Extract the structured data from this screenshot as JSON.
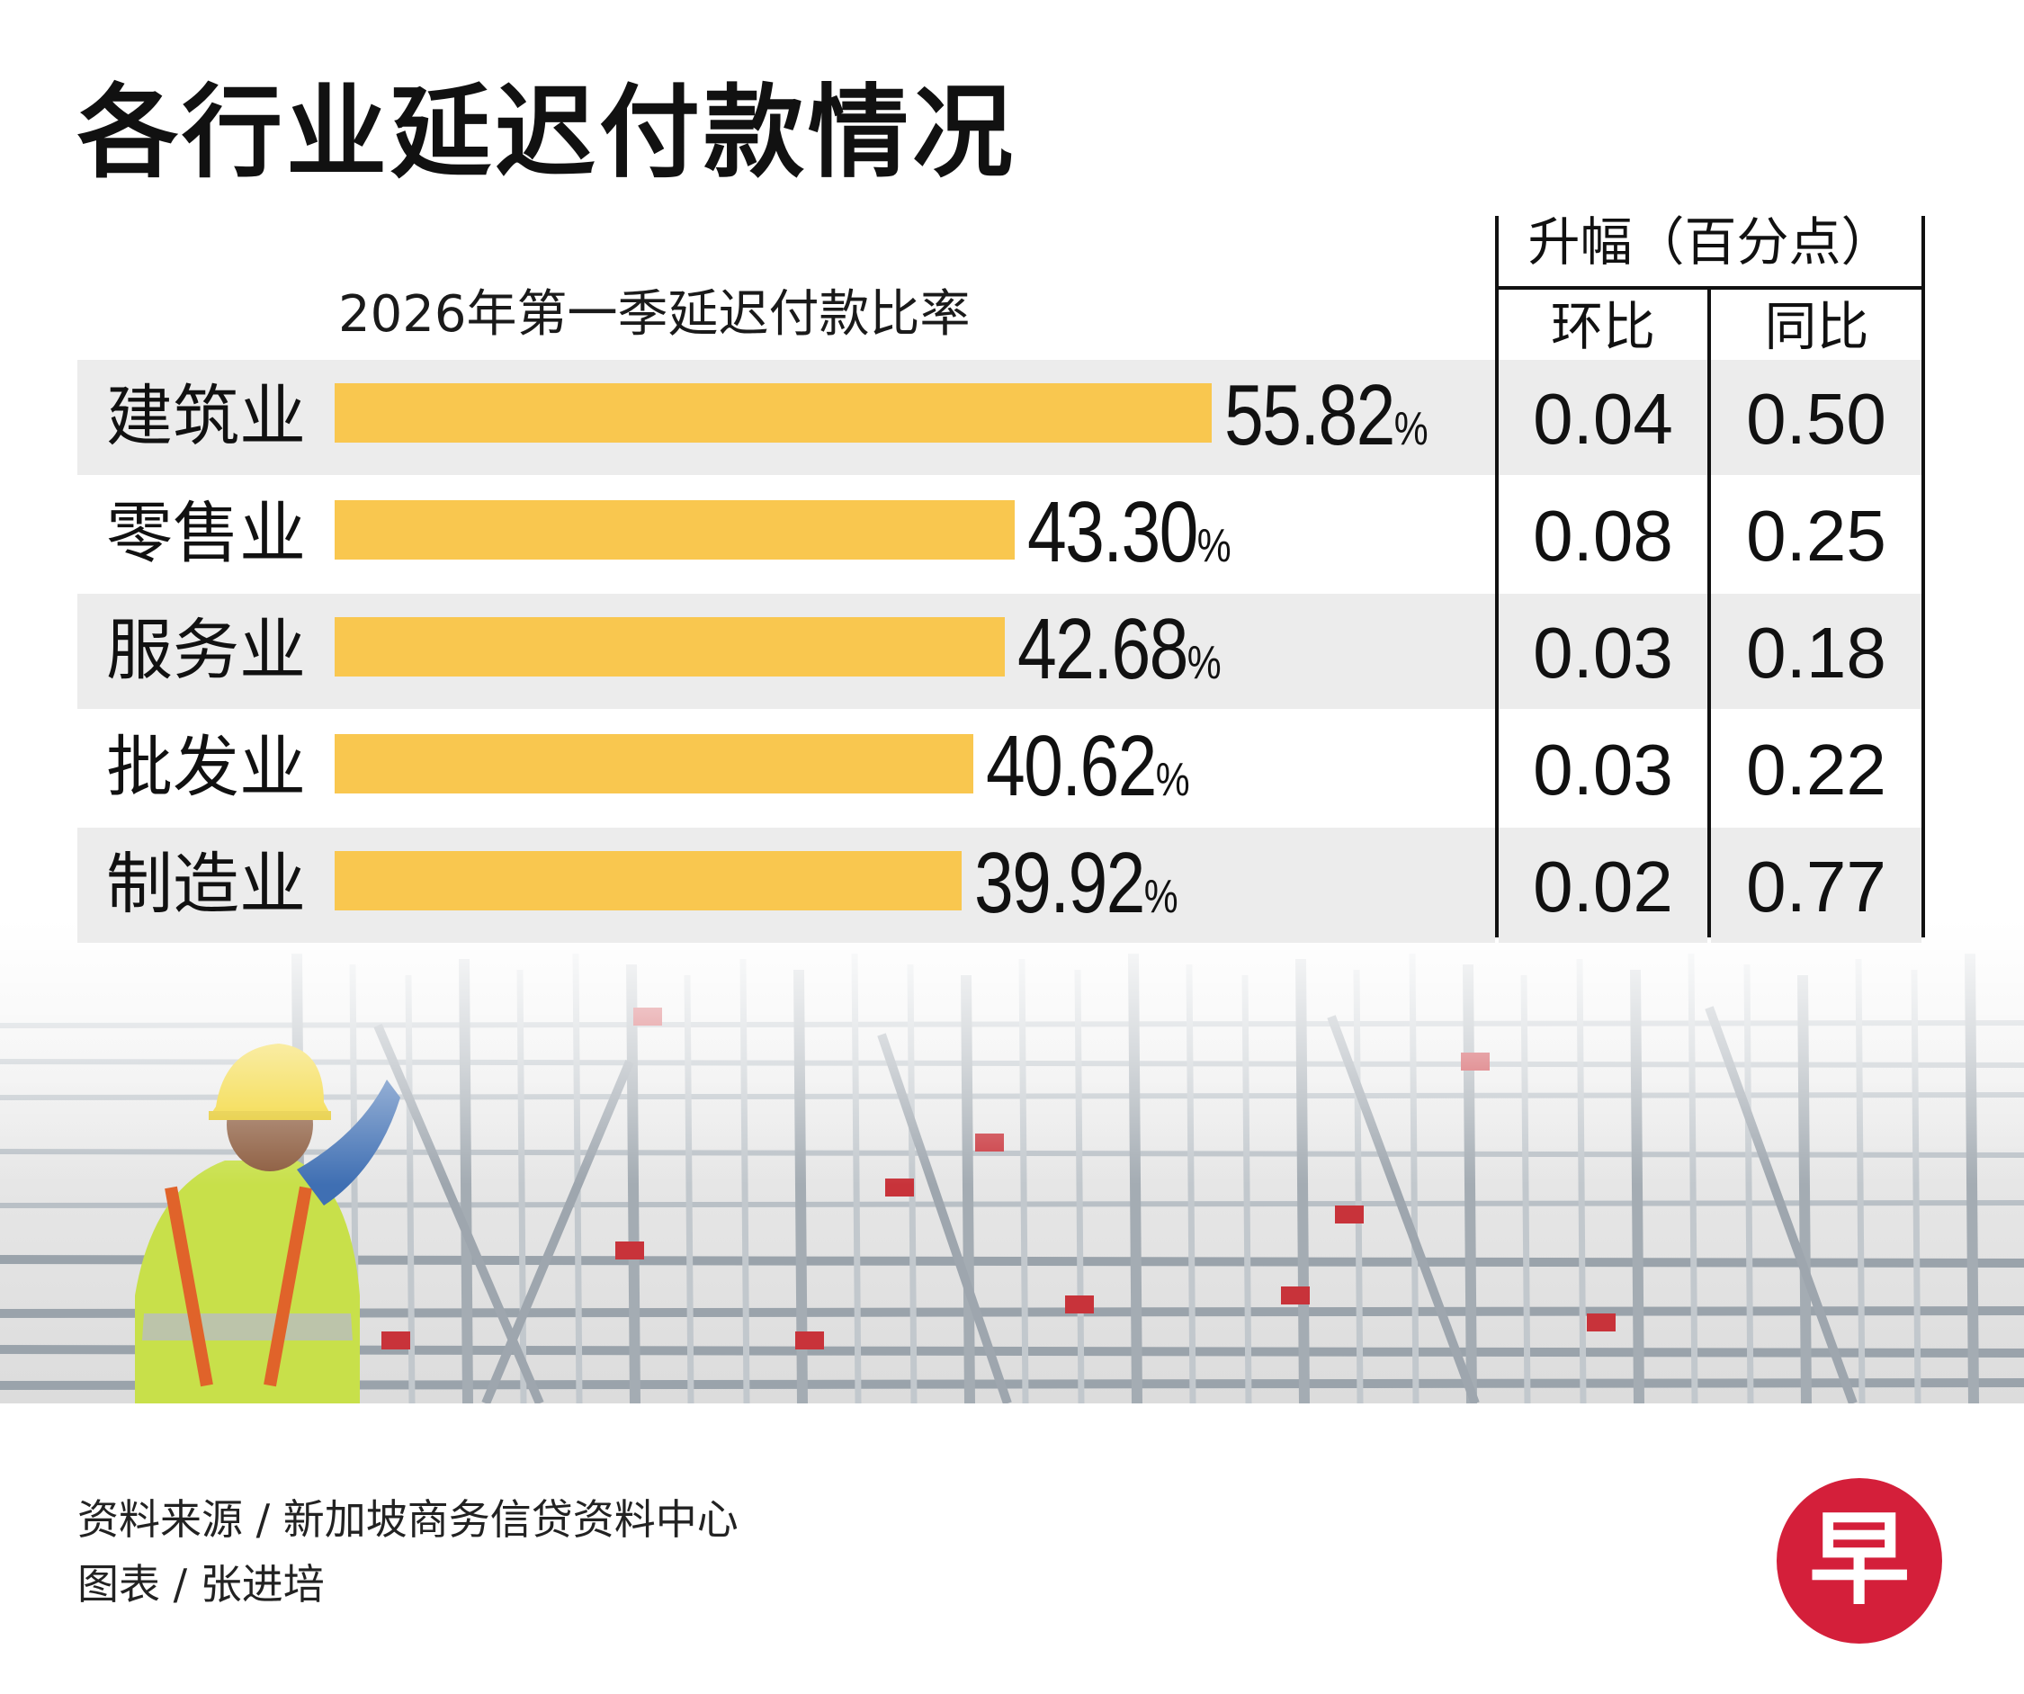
{
  "title": "各行业延迟付款情况",
  "footer": {
    "source": "资料来源 / 新加坡商务信贷资料中心",
    "credit": "图表 / 张进培"
  },
  "logo": {
    "glyph": "早"
  },
  "colors": {
    "bar": "#f9c74f",
    "row_shade": "#ececec",
    "logo_red": "#d41f3a"
  },
  "chart_data": {
    "type": "bar",
    "orientation": "horizontal",
    "title": "各行业延迟付款情况",
    "subtitle": "2026年第一季延迟付款比率",
    "value_suffix": "%",
    "categories": [
      "建筑业",
      "零售业",
      "服务业",
      "批发业",
      "制造业"
    ],
    "values": [
      55.82,
      43.3,
      42.68,
      40.62,
      39.92
    ],
    "value_labels": [
      "55.82",
      "43.30",
      "42.68",
      "40.62",
      "39.92"
    ],
    "xlim": [
      0,
      56
    ],
    "table": {
      "group_header": "升幅（百分点）",
      "columns": [
        "环比",
        "同比"
      ],
      "rows": [
        [
          "0.04",
          "0.50"
        ],
        [
          "0.08",
          "0.25"
        ],
        [
          "0.03",
          "0.18"
        ],
        [
          "0.03",
          "0.22"
        ],
        [
          "0.02",
          "0.77"
        ]
      ]
    }
  }
}
